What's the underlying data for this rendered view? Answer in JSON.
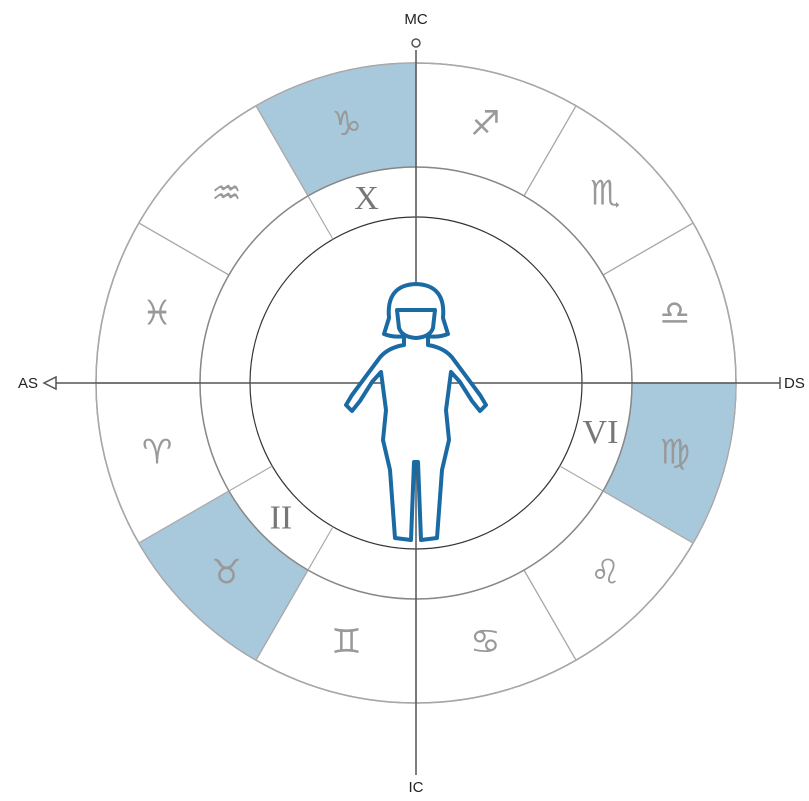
{
  "axes": {
    "top": "MC",
    "bottom": "IC",
    "left": "AS",
    "right": "DS"
  },
  "signs": [
    "♎",
    "♏",
    "♐",
    "♑",
    "♒",
    "♓",
    "♈",
    "♉",
    "♊",
    "♋",
    "♌",
    "♍"
  ],
  "houses": [
    "X",
    "II",
    "VI"
  ]
}
